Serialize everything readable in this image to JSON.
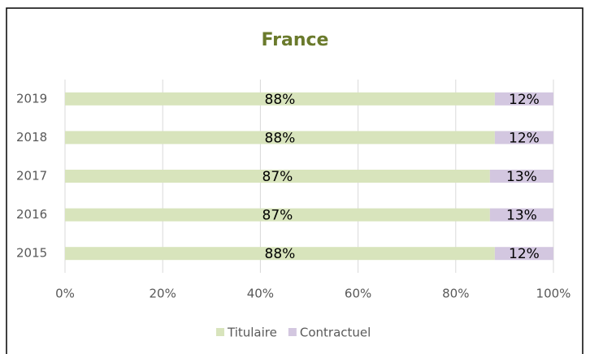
{
  "chart_data": {
    "type": "stacked_bar_horizontal",
    "title": "France",
    "categories": [
      "2019",
      "2018",
      "2017",
      "2016",
      "2015"
    ],
    "series": [
      {
        "name": "Titulaire",
        "color": "#d8e4bc",
        "values": [
          88,
          88,
          87,
          87,
          88
        ],
        "value_labels": [
          "88%",
          "88%",
          "87%",
          "87%",
          "88%"
        ]
      },
      {
        "name": "Contractuel",
        "color": "#d3c7e0",
        "values": [
          12,
          12,
          13,
          13,
          12
        ],
        "value_labels": [
          "12%",
          "12%",
          "13%",
          "13%",
          "12%"
        ]
      }
    ],
    "xlim": [
      0,
      100
    ],
    "xticks": [
      {
        "value": 0,
        "label": "0%"
      },
      {
        "value": 20,
        "label": "20%"
      },
      {
        "value": 40,
        "label": "40%"
      },
      {
        "value": 60,
        "label": "60%"
      },
      {
        "value": 80,
        "label": "80%"
      },
      {
        "value": 100,
        "label": "100%"
      }
    ],
    "grid": true,
    "legend": "bottom"
  }
}
